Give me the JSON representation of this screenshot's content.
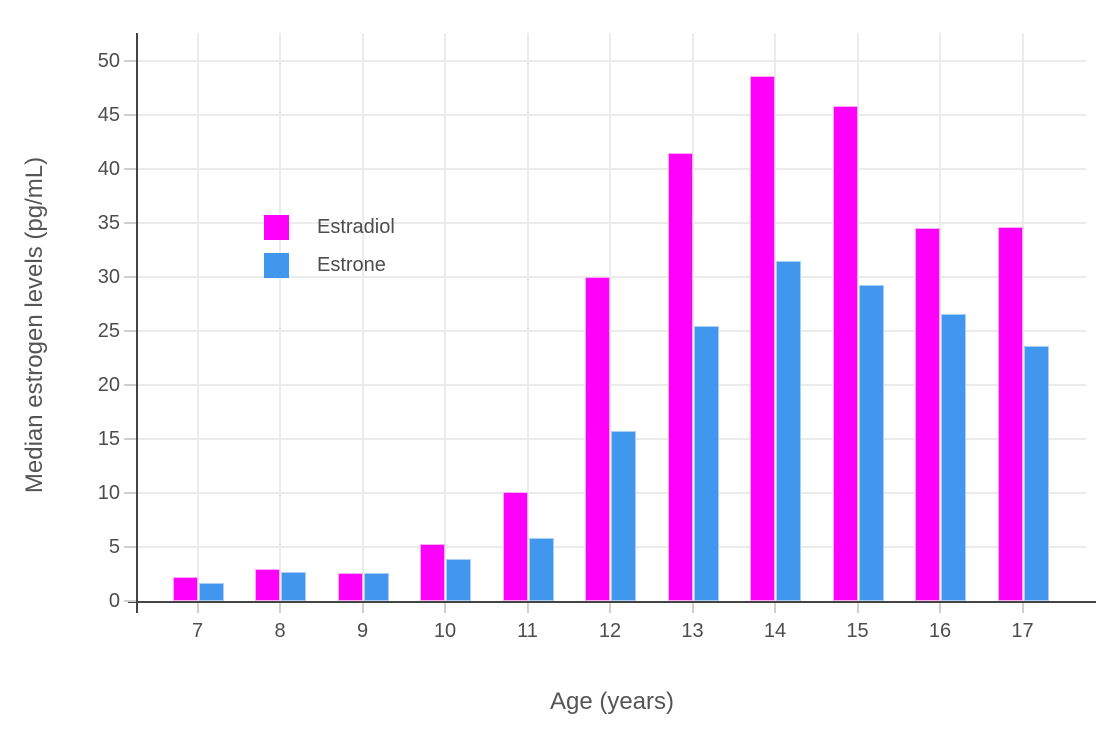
{
  "chart_data": {
    "type": "bar",
    "title": "",
    "xlabel": "Age (years)",
    "ylabel": "Median estrogen levels (pg/mL)",
    "categories": [
      "7",
      "8",
      "9",
      "10",
      "11",
      "12",
      "13",
      "14",
      "15",
      "16",
      "17"
    ],
    "series": [
      {
        "name": "Estradiol",
        "color": "#FF00FB",
        "edge_color": "#FFABF6",
        "values": [
          2.2,
          3.0,
          2.6,
          5.3,
          10.1,
          30.0,
          41.5,
          48.6,
          45.8,
          34.5,
          34.6
        ]
      },
      {
        "name": "Estrone",
        "color": "#4197EE",
        "edge_color": "#A9CFF6",
        "values": [
          1.7,
          2.7,
          2.6,
          3.9,
          5.8,
          15.7,
          25.5,
          31.5,
          29.3,
          26.6,
          23.6
        ]
      }
    ],
    "ylim": [
      0,
      52.6
    ],
    "yticks": [
      0,
      5,
      10,
      15,
      20,
      25,
      30,
      35,
      40,
      45,
      50
    ],
    "grid": "on",
    "legend_position": "inside-upper-left",
    "colors": {
      "background": "#FFFFFF",
      "axis_line": "#444444",
      "grid_line": "#EBEBEB",
      "tick_mark": "#CFCFCF",
      "tick_text": "#4D4D4D",
      "title_text": "#555555"
    }
  }
}
